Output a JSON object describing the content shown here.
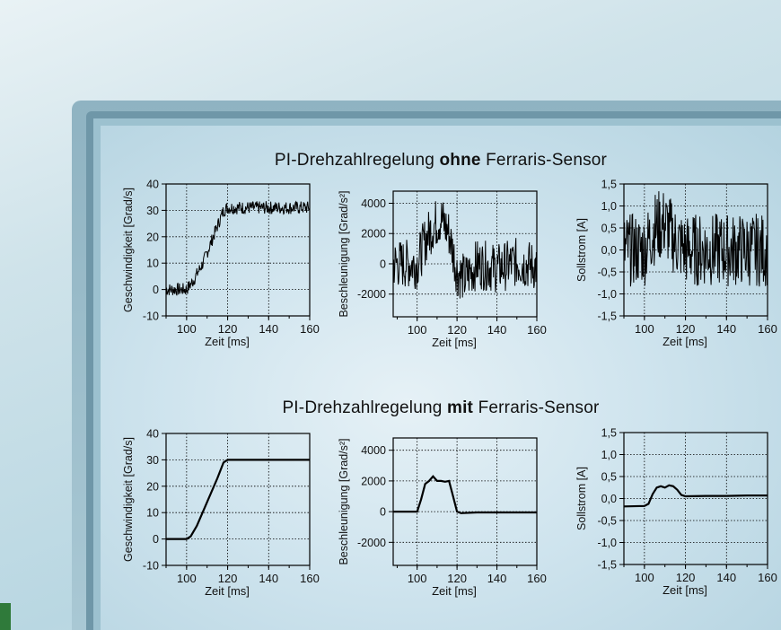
{
  "sections": [
    {
      "title_pre": "PI-Drehzahlregelung ",
      "title_bold": "ohne",
      "title_post": " Ferraris-Sensor"
    },
    {
      "title_pre": "PI-Drehzahlregelung ",
      "title_bold": "mit",
      "title_post": " Ferraris-Sensor"
    }
  ],
  "chart_data": [
    {
      "type": "line",
      "section": "ohne",
      "xlabel": "Zeit [ms]",
      "ylabel": "Geschwindigkeit [Grad/s]",
      "xlim": [
        90,
        160
      ],
      "ylim": [
        -10,
        40
      ],
      "xticks": [
        "100",
        "120",
        "140",
        "160"
      ],
      "yticks": [
        "-10",
        "0",
        "10",
        "20",
        "30",
        "40"
      ],
      "grid": true,
      "noisy": true,
      "series": [
        {
          "x": [
            90,
            100,
            103,
            108,
            112,
            116,
            118,
            120,
            130,
            140,
            150,
            160
          ],
          "y": [
            0,
            0,
            3,
            10,
            18,
            26,
            30,
            31,
            31,
            31,
            31,
            31
          ]
        }
      ]
    },
    {
      "type": "line",
      "section": "ohne",
      "xlabel": "Zeit [ms]",
      "ylabel": "Beschleunigung [Grad/s²]",
      "xlim": [
        88,
        160
      ],
      "ylim": [
        -3500,
        4800
      ],
      "xticks": [
        "100",
        "120",
        "140",
        "160"
      ],
      "yticks": [
        "-2000",
        "0",
        "2000",
        "4000"
      ],
      "grid": true,
      "noisy": true,
      "series": [
        {
          "x": [
            88,
            100,
            104,
            108,
            112,
            116,
            120,
            124,
            130,
            140,
            150,
            160
          ],
          "y": [
            0,
            0,
            1500,
            2500,
            3000,
            2000,
            -500,
            -1000,
            0,
            -300,
            100,
            -200
          ]
        }
      ]
    },
    {
      "type": "line",
      "section": "ohne",
      "xlabel": "Zeit [ms]",
      "ylabel": "Sollstrom [A]",
      "xlim": [
        90,
        160
      ],
      "ylim": [
        -1.5,
        1.5
      ],
      "xticks": [
        "100",
        "120",
        "140",
        "160"
      ],
      "yticks": [
        "-1,5",
        "-1,0",
        "-0,5",
        "0,0",
        "0,5",
        "1,0",
        "1,5"
      ],
      "grid": true,
      "noisy": true,
      "series": [
        {
          "x": [
            90,
            100,
            105,
            110,
            115,
            120,
            130,
            140,
            150,
            160
          ],
          "y": [
            0,
            0,
            0.5,
            0.6,
            0.2,
            0,
            0,
            0,
            0,
            0
          ]
        }
      ]
    },
    {
      "type": "line",
      "section": "mit",
      "xlabel": "Zeit [ms]",
      "ylabel": "Geschwindigkeit [Grad/s]",
      "xlim": [
        90,
        160
      ],
      "ylim": [
        -10,
        40
      ],
      "xticks": [
        "100",
        "120",
        "140",
        "160"
      ],
      "yticks": [
        "-10",
        "0",
        "10",
        "20",
        "30",
        "40"
      ],
      "grid": true,
      "noisy": false,
      "series": [
        {
          "x": [
            90,
            100,
            102,
            105,
            110,
            115,
            118,
            120,
            160
          ],
          "y": [
            0,
            0,
            1,
            5,
            14,
            23,
            29,
            30,
            30
          ]
        }
      ]
    },
    {
      "type": "line",
      "section": "mit",
      "xlabel": "Zeit [ms]",
      "ylabel": "Beschleunigung [Grad/s²]",
      "xlim": [
        88,
        160
      ],
      "ylim": [
        -3500,
        4800
      ],
      "xticks": [
        "100",
        "120",
        "140",
        "160"
      ],
      "yticks": [
        "-2000",
        "0",
        "2000",
        "4000"
      ],
      "grid": true,
      "noisy": false,
      "series": [
        {
          "x": [
            88,
            100,
            102,
            104,
            106,
            108,
            110,
            112,
            114,
            116,
            118,
            120,
            122,
            130,
            140,
            150,
            160
          ],
          "y": [
            0,
            0,
            800,
            1800,
            2000,
            2300,
            2000,
            2000,
            1950,
            2000,
            1000,
            0,
            -100,
            -50,
            -50,
            -50,
            -50
          ]
        }
      ]
    },
    {
      "type": "line",
      "section": "mit",
      "xlabel": "Zeit [ms]",
      "ylabel": "Sollstrom [A]",
      "xlim": [
        90,
        160
      ],
      "ylim": [
        -1.5,
        1.5
      ],
      "xticks": [
        "100",
        "120",
        "140",
        "160"
      ],
      "yticks": [
        "-1,5",
        "-1,0",
        "-0,5",
        "0,0",
        "0,5",
        "1,0",
        "1,5"
      ],
      "grid": true,
      "noisy": false,
      "series": [
        {
          "x": [
            90,
            100,
            102,
            104,
            106,
            108,
            110,
            112,
            114,
            116,
            118,
            120,
            130,
            140,
            150,
            160
          ],
          "y": [
            -0.18,
            -0.17,
            -0.12,
            0.1,
            0.25,
            0.28,
            0.25,
            0.3,
            0.28,
            0.2,
            0.08,
            0.05,
            0.06,
            0.06,
            0.07,
            0.07
          ]
        }
      ]
    }
  ]
}
